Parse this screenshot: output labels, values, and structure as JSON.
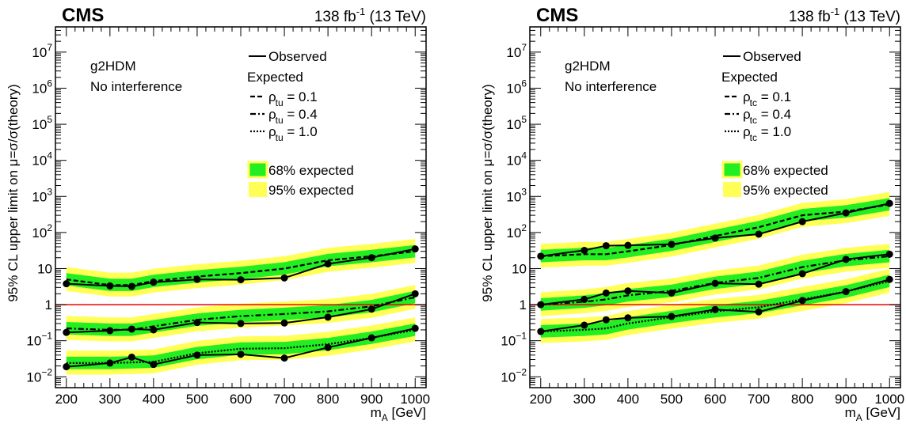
{
  "colors": {
    "band68": "#22ee22",
    "band95": "#ffff55",
    "observed": "#000000",
    "unity": "#ee0000"
  },
  "chart_data": [
    {
      "type": "line",
      "log_y": true,
      "ylim": [
        0.005,
        50000000
      ],
      "xlim": [
        175,
        1025
      ],
      "experiment": "CMS",
      "lumi": {
        "main": "138 fb",
        "sup": "-1",
        "rest": " (13 TeV)"
      },
      "ylabel": "95% CL upper limit on μ=σ/σ(theory)",
      "xlabel": {
        "main": "m",
        "sub": "A",
        "unit": " [GeV]"
      },
      "x_ticks": [
        "200",
        "300",
        "400",
        "500",
        "600",
        "700",
        "800",
        "900",
        "1000"
      ],
      "y_ticks": [
        {
          "value": 0.01,
          "base": "10",
          "exp": "−2"
        },
        {
          "value": 0.1,
          "base": "10",
          "exp": "−1"
        },
        {
          "value": 1,
          "base": "1",
          "exp": ""
        },
        {
          "value": 10,
          "base": "10",
          "exp": ""
        },
        {
          "value": 100,
          "base": "10",
          "exp": "2"
        },
        {
          "value": 1000,
          "base": "10",
          "exp": "3"
        },
        {
          "value": 10000,
          "base": "10",
          "exp": "4"
        },
        {
          "value": 100000,
          "base": "10",
          "exp": "5"
        },
        {
          "value": 1000000,
          "base": "10",
          "exp": "6"
        },
        {
          "value": 10000000,
          "base": "10",
          "exp": "7"
        }
      ],
      "model": [
        "g2HDM",
        "No interference"
      ],
      "legend": {
        "observed": "Observed",
        "expected_header": "Expected",
        "rho_symbol": "ρ",
        "rho_sub": "tu",
        "rho_entries": [
          "= 0.1",
          "= 0.4",
          "= 1.0"
        ],
        "band68": "68% expected",
        "band95": "95% expected"
      },
      "x": [
        200,
        300,
        350,
        400,
        500,
        600,
        700,
        800,
        900,
        1000
      ],
      "series": [
        {
          "rho": 0.1,
          "observed": [
            3.8,
            3.3,
            3.2,
            4.2,
            5.0,
            4.9,
            5.5,
            13.5,
            20,
            35
          ],
          "expected": [
            5.0,
            3.5,
            3.5,
            4.5,
            6.0,
            7.5,
            10,
            17,
            22,
            30
          ]
        },
        {
          "rho": 0.4,
          "observed": [
            0.17,
            0.19,
            0.21,
            0.2,
            0.32,
            0.3,
            0.31,
            0.45,
            0.75,
            2.0
          ],
          "expected": [
            0.22,
            0.2,
            0.2,
            0.25,
            0.38,
            0.48,
            0.55,
            0.65,
            0.9,
            1.6
          ]
        },
        {
          "rho": 1.0,
          "observed": [
            0.019,
            0.024,
            0.035,
            0.022,
            0.04,
            0.042,
            0.033,
            0.065,
            0.12,
            0.22
          ],
          "expected": [
            0.024,
            0.024,
            0.025,
            0.026,
            0.045,
            0.06,
            0.062,
            0.08,
            0.12,
            0.2
          ]
        }
      ]
    },
    {
      "type": "line",
      "log_y": true,
      "ylim": [
        0.005,
        50000000
      ],
      "xlim": [
        175,
        1025
      ],
      "experiment": "CMS",
      "lumi": {
        "main": "138 fb",
        "sup": "-1",
        "rest": " (13 TeV)"
      },
      "ylabel": "95% CL upper limit on μ=σ/σ(theory)",
      "xlabel": {
        "main": "m",
        "sub": "A",
        "unit": " [GeV]"
      },
      "x_ticks": [
        "200",
        "300",
        "400",
        "500",
        "600",
        "700",
        "800",
        "900",
        "1000"
      ],
      "y_ticks": [
        {
          "value": 0.01,
          "base": "10",
          "exp": "−2"
        },
        {
          "value": 0.1,
          "base": "10",
          "exp": "−1"
        },
        {
          "value": 1,
          "base": "1",
          "exp": ""
        },
        {
          "value": 10,
          "base": "10",
          "exp": ""
        },
        {
          "value": 100,
          "base": "10",
          "exp": "2"
        },
        {
          "value": 1000,
          "base": "10",
          "exp": "3"
        },
        {
          "value": 10000,
          "base": "10",
          "exp": "4"
        },
        {
          "value": 100000,
          "base": "10",
          "exp": "5"
        },
        {
          "value": 1000000,
          "base": "10",
          "exp": "6"
        },
        {
          "value": 10000000,
          "base": "10",
          "exp": "7"
        }
      ],
      "model": [
        "g2HDM",
        "No interference"
      ],
      "legend": {
        "observed": "Observed",
        "expected_header": "Expected",
        "rho_symbol": "ρ",
        "rho_sub": "tc",
        "rho_entries": [
          "= 0.1",
          "= 0.4",
          "= 1.0"
        ],
        "band68": "68% expected",
        "band95": "95% expected"
      },
      "x": [
        200,
        300,
        350,
        400,
        500,
        600,
        700,
        800,
        900,
        1000
      ],
      "series": [
        {
          "rho": 0.1,
          "observed": [
            22,
            32,
            43,
            44,
            47,
            70,
            90,
            200,
            350,
            640
          ],
          "expected": [
            22,
            25,
            25,
            30,
            45,
            80,
            140,
            300,
            380,
            600
          ]
        },
        {
          "rho": 0.4,
          "observed": [
            1.0,
            1.4,
            2.1,
            2.4,
            2.1,
            3.9,
            3.7,
            7.2,
            18,
            25
          ],
          "expected": [
            1.0,
            1.2,
            1.4,
            1.8,
            2.4,
            4.0,
            5.5,
            11,
            17,
            22
          ]
        },
        {
          "rho": 1.0,
          "observed": [
            0.18,
            0.27,
            0.38,
            0.43,
            0.47,
            0.73,
            0.63,
            1.3,
            2.3,
            5.0
          ],
          "expected": [
            0.18,
            0.2,
            0.22,
            0.3,
            0.45,
            0.65,
            0.85,
            1.4,
            2.3,
            4.5
          ]
        }
      ]
    }
  ]
}
